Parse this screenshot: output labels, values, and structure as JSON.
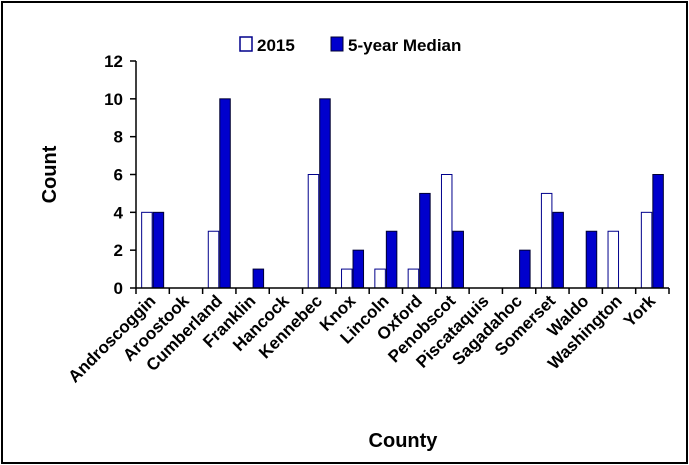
{
  "chart_data": {
    "type": "bar",
    "title": "",
    "xlabel": "County",
    "ylabel": "Count",
    "ylim": [
      0,
      12
    ],
    "yticks": [
      0,
      2,
      4,
      6,
      8,
      10,
      12
    ],
    "grid": false,
    "legend_position": "top",
    "categories": [
      "Androscoggin",
      "Aroostook",
      "Cumberland",
      "Franklin",
      "Hancock",
      "Kennebec",
      "Knox",
      "Lincoln",
      "Oxford",
      "Penobscot",
      "Piscataquis",
      "Sagadahoc",
      "Somerset",
      "Waldo",
      "Washington",
      "York"
    ],
    "series": [
      {
        "name": "2015",
        "color": "#ffffff",
        "stroke": "#00008b",
        "values": [
          4,
          0,
          3,
          0,
          0,
          6,
          1,
          1,
          1,
          6,
          0,
          0,
          5,
          0,
          3,
          4
        ]
      },
      {
        "name": "5-year Median",
        "color": "#0000cd",
        "stroke": "#000033",
        "values": [
          4,
          0,
          10,
          1,
          0,
          10,
          2,
          3,
          5,
          3,
          0,
          2,
          4,
          3,
          0,
          6
        ]
      }
    ]
  }
}
